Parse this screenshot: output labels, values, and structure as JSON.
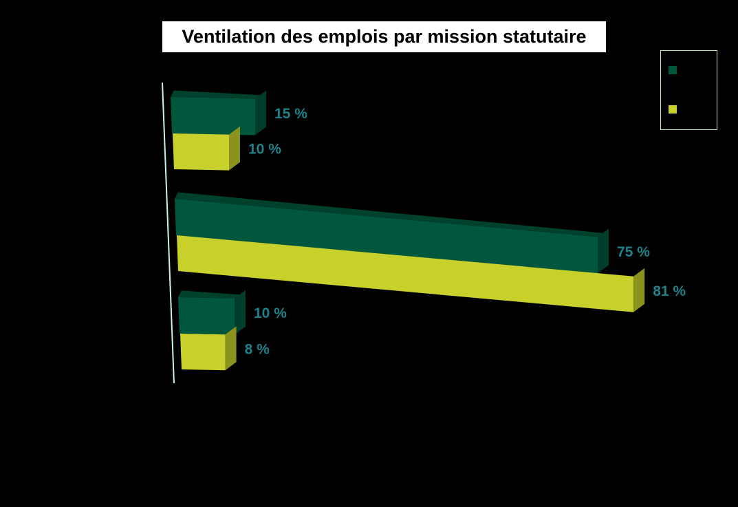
{
  "chart_data": {
    "type": "bar",
    "orientation": "horizontal",
    "title": "Ventilation des emplois par mission statutaire",
    "categories": [
      "",
      "",
      ""
    ],
    "series": [
      {
        "name": "",
        "color": "#00573d",
        "values": [
          15,
          75,
          10
        ]
      },
      {
        "name": "",
        "color": "#c8d12b",
        "values": [
          10,
          81,
          8
        ]
      }
    ],
    "value_suffix": " %",
    "xlim": [
      0,
      81
    ],
    "legend": "top-right",
    "grid": false
  }
}
